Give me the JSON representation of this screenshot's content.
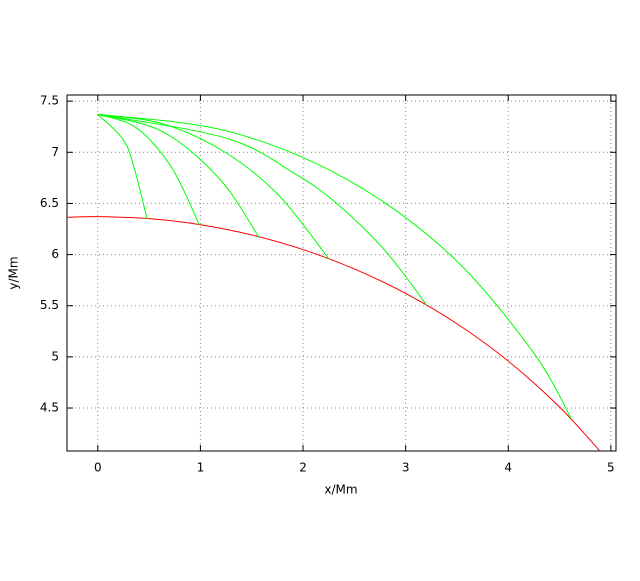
{
  "chart_data": {
    "type": "line",
    "x_label": "x/Mm",
    "y_label": "y/Mm",
    "xlim": [
      -0.3,
      5.05
    ],
    "ylim": [
      4.08,
      7.56
    ],
    "xticks": [
      0,
      1,
      2,
      3,
      4,
      5
    ],
    "yticks": [
      4.5,
      5,
      5.5,
      6,
      6.5,
      7,
      7.5
    ],
    "grid": true,
    "series": [
      {
        "color": "#ff0000",
        "x": [
          -0.3,
          0,
          0.5,
          1,
          1.5,
          2,
          2.5,
          3,
          3.5,
          4,
          4.5,
          4.9
        ],
        "values": [
          6.364,
          6.371,
          6.351,
          6.292,
          6.192,
          6.049,
          5.86,
          5.62,
          5.324,
          4.959,
          4.51,
          4.072
        ]
      },
      {
        "color": "#00ff00",
        "x": [
          0,
          0.249,
          0.358,
          0.48
        ],
        "values": [
          7.371,
          7.123,
          6.835,
          6.35
        ]
      },
      {
        "color": "#00ff00",
        "x": [
          0,
          0.379,
          0.72,
          0.99
        ],
        "values": [
          7.371,
          7.237,
          6.85,
          6.29
        ]
      },
      {
        "color": "#00ff00",
        "x": [
          0,
          0.63,
          1.188,
          1.57
        ],
        "values": [
          7.371,
          7.203,
          6.739,
          6.17
        ]
      },
      {
        "color": "#00ff00",
        "x": [
          0,
          0.637,
          1.235,
          1.763,
          2.25
        ],
        "values": [
          7.371,
          7.277,
          7.004,
          6.58,
          5.96
        ]
      },
      {
        "color": "#00ff00",
        "x": [
          0,
          1.258,
          1.943,
          2.357,
          2.81,
          3.205
        ],
        "values": [
          7.371,
          7.136,
          6.777,
          6.475,
          6.027,
          5.506
        ]
      },
      {
        "color": "#00ff00",
        "x": [
          0,
          1.27,
          2.447,
          3.453,
          4.239,
          4.62
        ],
        "values": [
          7.371,
          7.205,
          6.724,
          5.98,
          5.051,
          4.386
        ]
      }
    ]
  }
}
